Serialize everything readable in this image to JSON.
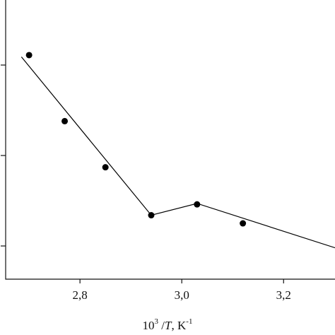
{
  "chart_data": {
    "type": "scatter",
    "xlabel": [
      "10",
      "3",
      " /",
      "T",
      ", K",
      "-1"
    ],
    "xlim": [
      2.654,
      3.301
    ],
    "ylim": [
      0.633,
      3.719
    ],
    "xticks": [
      {
        "value": 2.8,
        "label": "2,8"
      },
      {
        "value": 3.0,
        "label": "3,0"
      },
      {
        "value": 3.2,
        "label": "3,2"
      }
    ],
    "yticks": [
      1,
      2,
      3
    ],
    "ytick_labels": false,
    "series": [
      {
        "mode": "markers",
        "color": "#000000",
        "x": [
          2.7,
          2.77,
          2.85,
          2.94,
          3.03,
          3.12
        ],
        "values": [
          3.11,
          2.38,
          1.87,
          1.34,
          1.46,
          1.25
        ]
      },
      {
        "mode": "line",
        "color": "#000000",
        "x": [
          2.685,
          2.94,
          3.03,
          3.301
        ],
        "values": [
          3.09,
          1.34,
          1.47,
          0.98
        ]
      }
    ]
  }
}
